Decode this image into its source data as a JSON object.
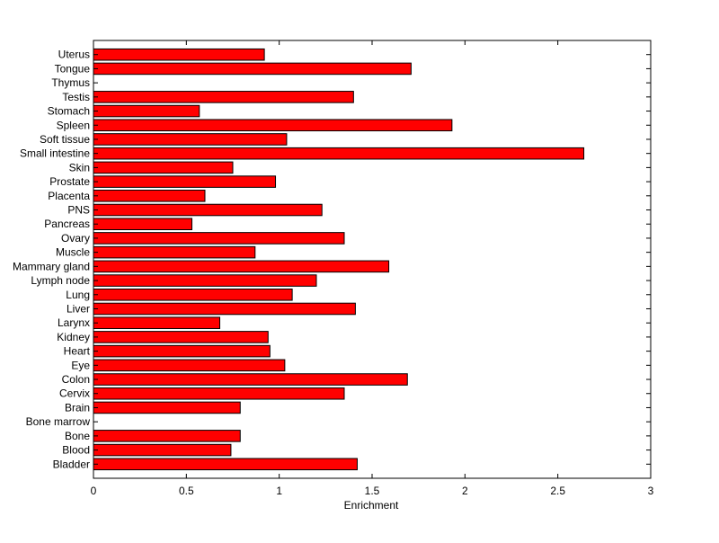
{
  "chart_data": {
    "type": "bar",
    "orientation": "horizontal",
    "categories": [
      "Uterus",
      "Tongue",
      "Thymus",
      "Testis",
      "Stomach",
      "Spleen",
      "Soft tissue",
      "Small intestine",
      "Skin",
      "Prostate",
      "Placenta",
      "PNS",
      "Pancreas",
      "Ovary",
      "Muscle",
      "Mammary gland",
      "Lymph node",
      "Lung",
      "Liver",
      "Larynx",
      "Kidney",
      "Heart",
      "Eye",
      "Colon",
      "Cervix",
      "Brain",
      "Bone marrow",
      "Bone",
      "Blood",
      "Bladder"
    ],
    "values": [
      0.92,
      1.71,
      0,
      1.4,
      0.57,
      1.93,
      1.04,
      2.64,
      0.75,
      0.98,
      0.6,
      1.23,
      0.53,
      1.35,
      0.87,
      1.59,
      1.2,
      1.07,
      1.41,
      0.68,
      0.94,
      0.95,
      1.03,
      1.69,
      1.35,
      0.79,
      0,
      0.79,
      0.74,
      1.42
    ],
    "xlabel": "Enrichment",
    "ylabel": "",
    "title": "",
    "xlim": [
      0,
      3
    ],
    "xticks": [
      0,
      0.5,
      1,
      1.5,
      2,
      2.5,
      3
    ],
    "xtick_labels": [
      "0",
      "0.5",
      "1",
      "1.5",
      "2",
      "2.5",
      "3"
    ],
    "grid": false,
    "bar_color": "#ff0000",
    "edge_color": "#000000"
  }
}
